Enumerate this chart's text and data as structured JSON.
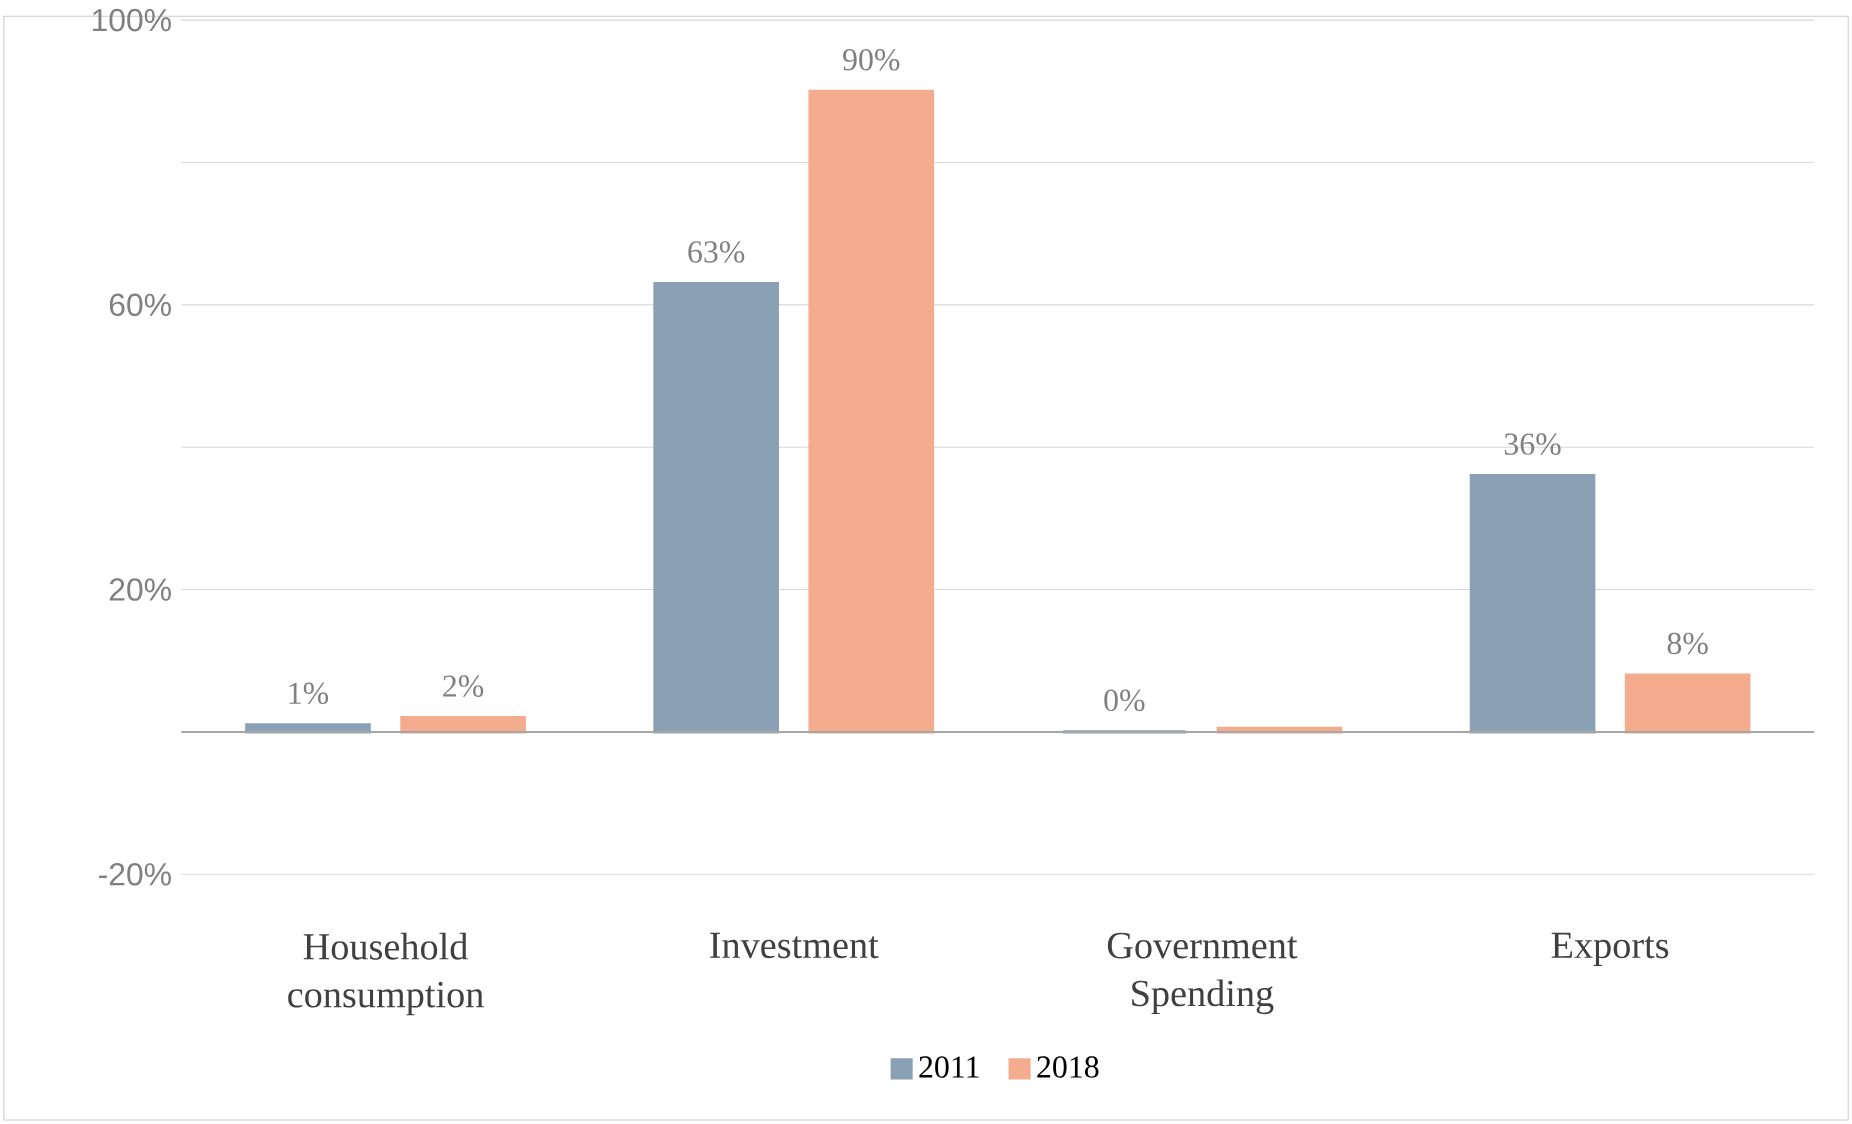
{
  "chart_data": {
    "type": "bar",
    "categories": [
      "Household consumption",
      "Investment",
      "Government Spending",
      "Exports"
    ],
    "series": [
      {
        "name": "2011",
        "color": "#8aa0b4",
        "values": [
          1,
          63,
          0,
          36
        ],
        "value_labels": [
          "1%",
          "63%",
          "0%",
          "36%"
        ]
      },
      {
        "name": "2018",
        "color": "#f4ab8e",
        "values": [
          2,
          90,
          0.5,
          8
        ],
        "value_labels": [
          "2%",
          "90%",
          null,
          "8%"
        ]
      }
    ],
    "ylim": [
      -20,
      100
    ],
    "yticks": [
      {
        "value": -20,
        "label": "-20%"
      },
      {
        "value": 0,
        "label": null
      },
      {
        "value": 20,
        "label": "20%"
      },
      {
        "value": 40,
        "label": null
      },
      {
        "value": 60,
        "label": "60%"
      },
      {
        "value": 80,
        "label": null
      },
      {
        "value": 100,
        "label": "100%"
      }
    ],
    "grid": "y",
    "legend": "bottom"
  }
}
